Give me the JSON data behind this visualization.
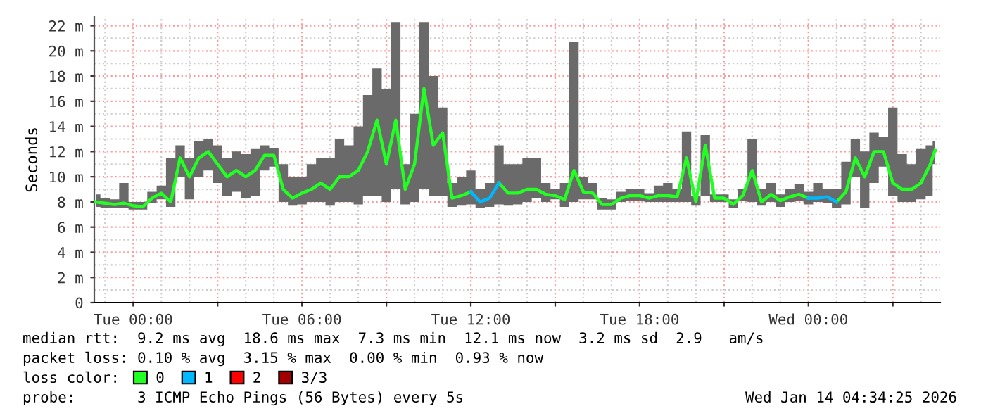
{
  "chart_data": {
    "type": "line",
    "ylabel": "Seconds",
    "x": [
      "2026-01-12T22:40",
      "2026-01-12T23:00",
      "2026-01-12T23:20",
      "2026-01-12T23:40",
      "2026-01-13T00:00",
      "2026-01-13T00:20",
      "2026-01-13T00:40",
      "2026-01-13T01:00",
      "2026-01-13T01:20",
      "2026-01-13T01:40",
      "2026-01-13T02:00",
      "2026-01-13T02:20",
      "2026-01-13T02:40",
      "2026-01-13T03:00",
      "2026-01-13T03:20",
      "2026-01-13T03:40",
      "2026-01-13T04:00",
      "2026-01-13T04:20",
      "2026-01-13T04:40",
      "2026-01-13T05:00",
      "2026-01-13T05:20",
      "2026-01-13T05:40",
      "2026-01-13T06:00",
      "2026-01-13T06:20",
      "2026-01-13T06:40",
      "2026-01-13T07:00",
      "2026-01-13T07:20",
      "2026-01-13T07:40",
      "2026-01-13T08:00",
      "2026-01-13T08:20",
      "2026-01-13T08:40",
      "2026-01-13T09:00",
      "2026-01-13T09:20",
      "2026-01-13T09:40",
      "2026-01-13T10:00",
      "2026-01-13T10:20",
      "2026-01-13T10:40",
      "2026-01-13T11:00",
      "2026-01-13T11:20",
      "2026-01-13T11:40",
      "2026-01-13T12:00",
      "2026-01-13T12:20",
      "2026-01-13T12:40",
      "2026-01-13T13:00",
      "2026-01-13T13:20",
      "2026-01-13T13:40",
      "2026-01-13T14:00",
      "2026-01-13T14:20",
      "2026-01-13T14:40",
      "2026-01-13T15:00",
      "2026-01-13T15:20",
      "2026-01-13T15:40",
      "2026-01-13T16:00",
      "2026-01-13T16:20",
      "2026-01-13T16:40",
      "2026-01-13T17:00",
      "2026-01-13T17:20",
      "2026-01-13T17:40",
      "2026-01-13T18:00",
      "2026-01-13T18:20",
      "2026-01-13T18:40",
      "2026-01-13T19:00",
      "2026-01-13T19:20",
      "2026-01-13T19:40",
      "2026-01-13T20:00",
      "2026-01-13T20:20",
      "2026-01-13T20:40",
      "2026-01-13T21:00",
      "2026-01-13T21:20",
      "2026-01-13T21:40",
      "2026-01-13T22:00",
      "2026-01-13T22:20",
      "2026-01-13T22:40",
      "2026-01-13T23:00",
      "2026-01-13T23:20",
      "2026-01-13T23:40",
      "2026-01-14T00:00",
      "2026-01-14T00:20",
      "2026-01-14T00:40",
      "2026-01-14T01:00",
      "2026-01-14T01:20",
      "2026-01-14T01:40",
      "2026-01-14T02:00",
      "2026-01-14T02:20",
      "2026-01-14T02:40",
      "2026-01-14T03:00",
      "2026-01-14T03:20",
      "2026-01-14T03:40",
      "2026-01-14T04:00",
      "2026-01-14T04:20",
      "2026-01-14T04:30"
    ],
    "series": [
      {
        "name": "0",
        "color": "#22ff22",
        "values": [
          8.0,
          7.9,
          7.8,
          7.9,
          7.7,
          7.6,
          8.3,
          8.7,
          8.0,
          11.5,
          10.0,
          11.5,
          12.0,
          11.0,
          10.0,
          10.5,
          10.0,
          10.5,
          11.7,
          11.7,
          9.0,
          8.3,
          8.7,
          9.0,
          9.5,
          9.0,
          10.0,
          10.0,
          10.5,
          12.0,
          14.5,
          11.0,
          14.5,
          9.0,
          11.0,
          17.0,
          12.5,
          13.5,
          8.3,
          8.5,
          8.8,
          null,
          null,
          9.5,
          8.7,
          8.7,
          9.0,
          9.0,
          8.6,
          8.5,
          8.2,
          10.5,
          8.8,
          8.7,
          7.8,
          7.8,
          8.3,
          8.5,
          8.5,
          8.3,
          8.5,
          8.5,
          8.4,
          11.5,
          8.0,
          12.5,
          8.3,
          8.3,
          7.8,
          8.5,
          10.5,
          8.0,
          8.6,
          8.1,
          8.4,
          8.6,
          8.3,
          null,
          null,
          8.0,
          8.8,
          11.5,
          10.0,
          12.0,
          12.0,
          9.5,
          9.0,
          9.0,
          9.5,
          11.0,
          12.1
        ],
        "lower": [
          7.6,
          7.5,
          7.5,
          7.5,
          7.4,
          7.4,
          7.9,
          8.2,
          7.6,
          10.0,
          8.2,
          10.0,
          10.5,
          9.5,
          8.5,
          8.8,
          8.3,
          8.5,
          10.5,
          10.8,
          8.0,
          7.7,
          7.8,
          8.0,
          8.0,
          7.7,
          8.0,
          8.0,
          7.8,
          8.5,
          8.5,
          8.0,
          9.0,
          7.8,
          8.0,
          9.0,
          8.5,
          8.5,
          7.6,
          7.7,
          7.8,
          7.5,
          7.6,
          7.8,
          7.7,
          7.8,
          8.0,
          8.3,
          8.0,
          8.2,
          7.6,
          8.0,
          8.2,
          8.2,
          7.4,
          7.4,
          8.0,
          8.1,
          8.1,
          8.0,
          8.0,
          8.0,
          8.0,
          8.0,
          7.7,
          8.5,
          8.0,
          8.0,
          7.5,
          8.1,
          8.0,
          7.7,
          8.0,
          7.6,
          8.0,
          8.1,
          7.8,
          8.0,
          7.9,
          7.5,
          7.8,
          10.0,
          7.5,
          9.5,
          10.8,
          8.5,
          8.0,
          8.0,
          8.2,
          8.5,
          11.0
        ],
        "upper": [
          8.6,
          8.3,
          8.2,
          9.5,
          8.0,
          8.0,
          8.8,
          9.3,
          11.5,
          12.5,
          11.5,
          12.8,
          13.0,
          12.5,
          11.5,
          12.0,
          11.8,
          12.2,
          12.5,
          12.3,
          11.0,
          10.0,
          10.0,
          11.0,
          11.5,
          11.5,
          13.0,
          12.5,
          14.0,
          16.5,
          18.6,
          17.0,
          22.3,
          11.0,
          15.0,
          22.3,
          18.0,
          15.5,
          9.5,
          10.0,
          10.5,
          9.0,
          9.5,
          12.5,
          11.0,
          11.0,
          11.5,
          11.5,
          9.5,
          9.0,
          9.5,
          20.7,
          10.0,
          9.5,
          8.3,
          8.2,
          8.8,
          9.0,
          9.0,
          8.7,
          9.3,
          9.5,
          9.0,
          13.6,
          8.5,
          13.3,
          8.6,
          8.6,
          8.2,
          9.0,
          13.0,
          9.0,
          9.5,
          8.6,
          9.0,
          9.4,
          8.8,
          9.5,
          9.0,
          9.0,
          11.2,
          13.0,
          12.0,
          13.5,
          13.2,
          15.5,
          11.8,
          11.0,
          12.2,
          12.5,
          12.8
        ]
      },
      {
        "name": "1",
        "color": "#00b8ff",
        "values": [
          null,
          null,
          null,
          null,
          null,
          null,
          null,
          null,
          null,
          null,
          null,
          null,
          null,
          null,
          null,
          null,
          null,
          null,
          null,
          null,
          null,
          null,
          null,
          null,
          null,
          null,
          null,
          null,
          null,
          null,
          null,
          null,
          null,
          null,
          null,
          null,
          null,
          null,
          null,
          null,
          8.8,
          8.0,
          8.3,
          9.5,
          null,
          null,
          null,
          null,
          null,
          null,
          null,
          null,
          null,
          null,
          null,
          null,
          null,
          null,
          null,
          null,
          null,
          null,
          null,
          null,
          null,
          null,
          null,
          null,
          null,
          null,
          null,
          null,
          null,
          null,
          null,
          null,
          8.3,
          8.3,
          8.4,
          8.0,
          null,
          null,
          null,
          null,
          null,
          null,
          null,
          null,
          null,
          null,
          null
        ]
      },
      {
        "name": "2",
        "color": "#ff0000",
        "values": [
          null,
          null,
          null,
          null,
          null,
          null,
          null,
          null,
          null,
          null,
          null,
          null,
          null,
          null,
          null,
          null,
          null,
          null,
          null,
          null,
          null,
          null,
          null,
          null,
          null,
          null,
          null,
          null,
          null,
          null,
          null,
          null,
          null,
          null,
          null,
          null,
          null,
          null,
          null,
          null,
          null,
          null,
          null,
          null,
          null,
          null,
          null,
          null,
          null,
          null,
          null,
          null,
          null,
          null,
          null,
          null,
          null,
          null,
          null,
          null,
          null,
          null,
          null,
          null,
          null,
          null,
          null,
          null,
          null,
          null,
          null,
          null,
          null,
          null,
          null,
          null,
          null,
          null,
          null,
          null,
          null,
          null,
          null,
          null,
          null,
          null,
          null,
          null,
          null,
          null,
          null
        ]
      },
      {
        "name": "3/3",
        "color": "#a00000",
        "values": [
          null,
          null,
          null,
          null,
          null,
          null,
          null,
          null,
          null,
          null,
          null,
          null,
          null,
          null,
          null,
          null,
          null,
          null,
          null,
          null,
          null,
          null,
          null,
          null,
          null,
          null,
          null,
          null,
          null,
          null,
          null,
          null,
          null,
          null,
          null,
          null,
          null,
          null,
          null,
          null,
          null,
          null,
          null,
          null,
          null,
          null,
          null,
          null,
          null,
          null,
          null,
          null,
          null,
          null,
          null,
          null,
          null,
          null,
          null,
          null,
          null,
          null,
          null,
          null,
          null,
          null,
          null,
          null,
          null,
          null,
          null,
          null,
          null,
          null,
          null,
          null,
          null,
          null,
          null,
          null,
          null,
          null,
          null,
          null,
          null,
          null,
          null,
          null,
          null,
          null,
          null
        ]
      }
    ],
    "xlim": [
      "2026-01-12T22:37",
      "2026-01-14T04:41"
    ],
    "xticks": [
      {
        "value": "2026-01-13T00:00",
        "label": "Tue 00:00"
      },
      {
        "value": "2026-01-13T03:00",
        "label": null
      },
      {
        "value": "2026-01-13T06:00",
        "label": "Tue 06:00"
      },
      {
        "value": "2026-01-13T09:00",
        "label": null
      },
      {
        "value": "2026-01-13T12:00",
        "label": "Tue 12:00"
      },
      {
        "value": "2026-01-13T15:00",
        "label": null
      },
      {
        "value": "2026-01-13T18:00",
        "label": "Tue 18:00"
      },
      {
        "value": "2026-01-13T21:00",
        "label": null
      },
      {
        "value": "2026-01-14T00:00",
        "label": "Wed 00:00"
      },
      {
        "value": "2026-01-14T03:00",
        "label": null
      }
    ],
    "ylim": [
      0,
      22.7
    ],
    "yticks": [
      0,
      {
        "value": 2,
        "label": "2 m"
      },
      {
        "value": 4,
        "label": "4 m"
      },
      {
        "value": 6,
        "label": "6 m"
      },
      {
        "value": 8,
        "label": "8 m"
      },
      {
        "value": 10,
        "label": "10 m"
      },
      {
        "value": 12,
        "label": "12 m"
      },
      {
        "value": 14,
        "label": "14 m"
      },
      {
        "value": 16,
        "label": "16 m"
      },
      {
        "value": 18,
        "label": "18 m"
      },
      {
        "value": 20,
        "label": "20 m"
      },
      {
        "value": 22,
        "label": "22 m"
      }
    ],
    "grid": true,
    "legend": "bottom",
    "legend_title": "loss color:",
    "annotations": [
      "median rtt:  9.2 ms avg  18.6 ms max  7.3 ms min  12.1 ms now  3.2 ms sd  2.9   am/s",
      "packet loss: 0.10 % avg  3.15 % max  0.00 % min  0.93 % now",
      "probe:       3 ICMP Echo Pings (56 Bytes) every 5s",
      "Wed Jan 14 04:34:25 2026"
    ]
  }
}
